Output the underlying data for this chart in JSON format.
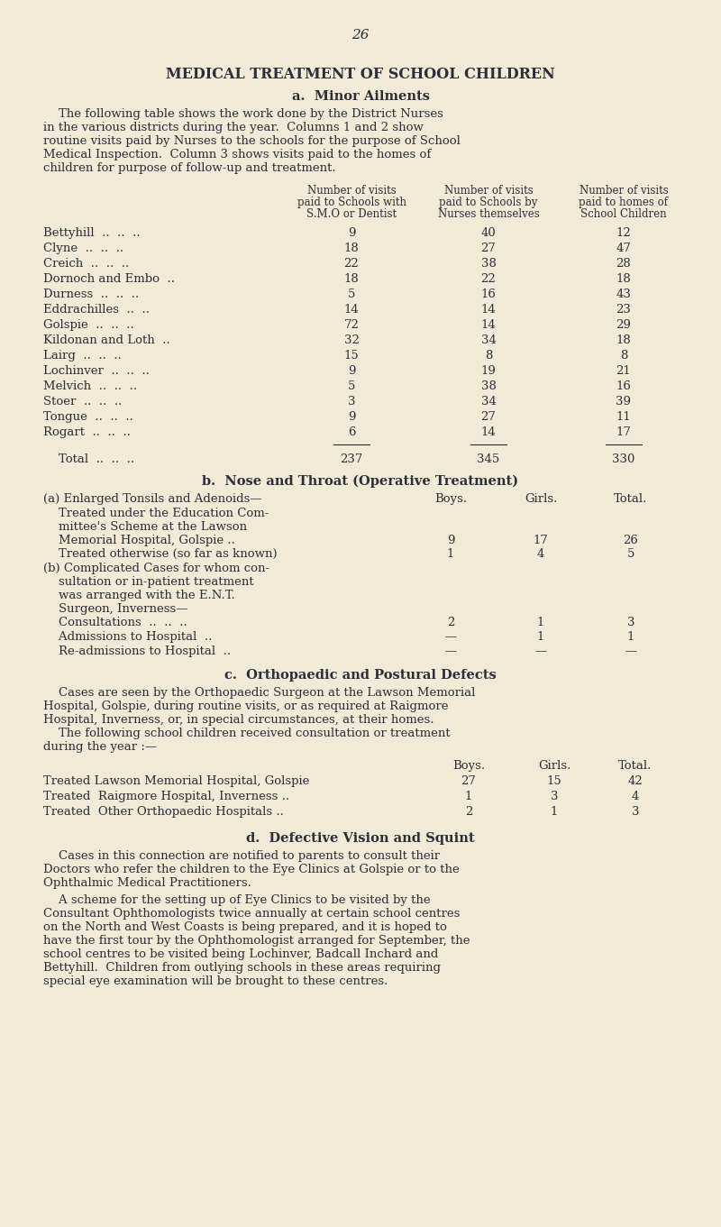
{
  "page_number": "26",
  "bg_color": "#f0ead6",
  "text_color": "#2d2d3a",
  "main_title": "MEDICAL TREATMENT OF SCHOOL CHILDREN",
  "section_a_title": "a.  Minor Ailments",
  "section_a_intro_lines": [
    "    The following table shows the work done by the District Nurses",
    "in the various districts during the year.  Columns 1 and 2 show",
    "routine visits paid by Nurses to the schools for the purpose of School",
    "Medical Inspection.  Column 3 shows visits paid to the homes of",
    "children for purpose of follow-up and treatment."
  ],
  "table_a_header": [
    [
      "Number of visits",
      "Number of visits",
      "Number of visits"
    ],
    [
      "paid to Schools with",
      "paid to Schools by",
      "paid to homes of"
    ],
    [
      "S.M.O or Dentist",
      "Nurses themselves",
      "School Children"
    ]
  ],
  "table_a_rows": [
    [
      "Bettyhill  ..  ..  ..",
      "9",
      "40",
      "12"
    ],
    [
      "Clyne  ..  ..  ..",
      "18",
      "27",
      "47"
    ],
    [
      "Creich  ..  ..  ..",
      "22",
      "38",
      "28"
    ],
    [
      "Dornoch and Embo  ..",
      "18",
      "22",
      "18"
    ],
    [
      "Durness  ..  ..  ..",
      "5",
      "16",
      "43"
    ],
    [
      "Eddrachilles  ..  ..",
      "14",
      "14",
      "23"
    ],
    [
      "Golspie  ..  ..  ..",
      "72",
      "14",
      "29"
    ],
    [
      "Kildonan and Loth  ..",
      "32",
      "34",
      "18"
    ],
    [
      "Lairg  ..  ..  ..",
      "15",
      "8",
      "8"
    ],
    [
      "Lochinver  ..  ..  ..",
      "9",
      "19",
      "21"
    ],
    [
      "Melvich  ..  ..  ..",
      "5",
      "38",
      "16"
    ],
    [
      "Stoer  ..  ..  ..",
      "3",
      "34",
      "39"
    ],
    [
      "Tongue  ..  ..  ..",
      "9",
      "27",
      "11"
    ],
    [
      "Rogart  ..  ..  ..",
      "6",
      "14",
      "17"
    ]
  ],
  "table_a_total": [
    "    Total  ..  ..  ..",
    "237",
    "345",
    "330"
  ],
  "section_b_title": "b.  Nose and Throat (Operative Treatment)",
  "section_b_a_label": "(a) Enlarged Tonsils and Adenoids—",
  "section_b_a_row1_lines": [
    "    Treated under the Education Com-",
    "    mittee's Scheme at the Lawson",
    "    Memorial Hospital, Golspie .."
  ],
  "section_b_a_row1_vals": [
    "9",
    "17",
    "26"
  ],
  "section_b_a_row2_label": "    Treated otherwise (so far as known)",
  "section_b_a_row2_vals": [
    "1",
    "4",
    "5"
  ],
  "section_b_b_lines": [
    "(b) Complicated Cases for whom con-",
    "    sultation or in-patient treatment",
    "    was arranged with the E.N.T.",
    "    Surgeon, Inverness—"
  ],
  "section_b_b_rows": [
    [
      "    Consultations  ..  ..  ..",
      "2",
      "1",
      "3"
    ],
    [
      "    Admissions to Hospital  ..",
      "—",
      "1",
      "1"
    ],
    [
      "    Re-admissions to Hospital  ..",
      "—",
      "—",
      "—"
    ]
  ],
  "section_c_title": "c.  Orthopaedic and Postural Defects",
  "section_c_intro1_lines": [
    "    Cases are seen by the Orthopaedic Surgeon at the Lawson Memorial",
    "Hospital, Golspie, during routine visits, or as required at Raigmore",
    "Hospital, Inverness, or, in special circumstances, at their homes."
  ],
  "section_c_intro2_lines": [
    "    The following school children received consultation or treatment",
    "during the year :—"
  ],
  "section_c_rows": [
    [
      "Treated Lawson Memorial Hospital, Golspie",
      "27",
      "15",
      "42"
    ],
    [
      "Treated  Raigmore Hospital, Inverness ..",
      "1",
      "3",
      "4"
    ],
    [
      "Treated  Other Orthopaedic Hospitals ..",
      "2",
      "1",
      "3"
    ]
  ],
  "section_d_title": "d.  Defective Vision and Squint",
  "section_d_text1_lines": [
    "    Cases in this connection are notified to parents to consult their",
    "Doctors who refer the children to the Eye Clinics at Golspie or to the",
    "Ophthalmic Medical Practitioners."
  ],
  "section_d_text2_lines": [
    "    A scheme for the setting up of Eye Clinics to be visited by the",
    "Consultant Ophthomologists twice annually at certain school centres",
    "on the North and West Coasts is being prepared, and it is hoped to",
    "have the first tour by the Ophthomologist arranged for September, the",
    "school centres to be visited being Lochinver, Badcall Inchard and",
    "Bettyhill.  Children from outlying schools in these areas requiring",
    "special eye examination will be brought to these centres."
  ]
}
